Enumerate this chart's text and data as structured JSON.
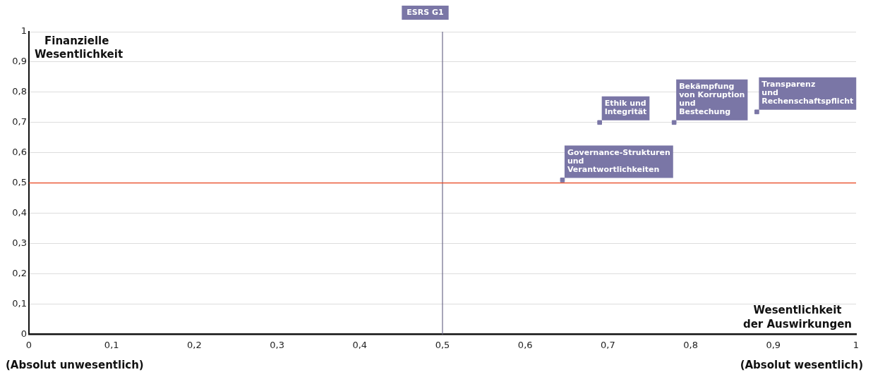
{
  "chart_data": {
    "type": "scatter",
    "title": "ESRS G1",
    "xlabel": "Wesentlichkeit der Auswirkungen",
    "ylabel": "Finanzielle Wesentlichkeit",
    "series": [
      {
        "color": "#7a76a6",
        "x": [
          0.645,
          0.69,
          0.78,
          0.88
        ],
        "values": [
          0.51,
          0.7,
          0.7,
          0.735
        ]
      }
    ],
    "marker": "square",
    "grid": "y",
    "legend": false,
    "xlim": [
      0,
      1
    ],
    "ylim": [
      0,
      1
    ],
    "xticks": [
      0,
      {
        "value": 0.1,
        "label": "0,1"
      },
      {
        "value": 0.2,
        "label": "0,2"
      },
      {
        "value": 0.3,
        "label": "0,3"
      },
      {
        "value": 0.4,
        "label": "0,4"
      },
      {
        "value": 0.5,
        "label": "0,5"
      },
      {
        "value": 0.6,
        "label": "0,6"
      },
      {
        "value": 0.7,
        "label": "0,7"
      },
      {
        "value": 0.8,
        "label": "0,8"
      },
      {
        "value": 0.9,
        "label": "0,9"
      },
      1
    ],
    "yticks": [
      0,
      {
        "value": 0.1,
        "label": "0,1"
      },
      {
        "value": 0.2,
        "label": "0,2"
      },
      {
        "value": 0.3,
        "label": "0,3"
      },
      {
        "value": 0.4,
        "label": "0,4"
      },
      {
        "value": 0.5,
        "label": "0,5"
      },
      {
        "value": 0.6,
        "label": "0,6"
      },
      {
        "value": 0.7,
        "label": "0,7"
      },
      {
        "value": 0.8,
        "label": "0,8"
      },
      {
        "value": 0.9,
        "label": "0,9"
      },
      1
    ],
    "ref_lines": [
      {
        "axis": "x",
        "value": 0.5,
        "color": "#6d6a8a"
      },
      {
        "axis": "y",
        "value": 0.5,
        "color": "#e8431c"
      }
    ],
    "annotations": [
      {
        "text": "Governance-Strukturen und Verantwortlichkeiten",
        "x": 0.645,
        "y": 0.51
      },
      {
        "text": "Ethik und Integrität",
        "x": 0.69,
        "y": 0.7
      },
      {
        "text": "Bekämpfung von Korruption und Bestechung",
        "x": 0.78,
        "y": 0.7
      },
      {
        "text": "Transparenz und Rechenschaftspflicht",
        "x": 0.88,
        "y": 0.735
      },
      "(Absolut unwesentlich)",
      "(Absolut wesentlich)"
    ]
  }
}
